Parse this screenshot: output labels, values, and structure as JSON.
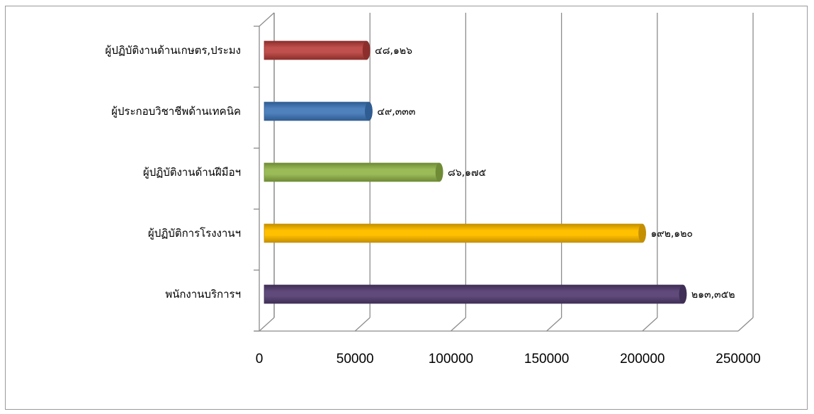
{
  "chart_data": {
    "type": "bar",
    "orientation": "horizontal",
    "title": "",
    "xlabel": "",
    "ylabel": "",
    "categories": [
      "ผู้ปฏิบัติงานด้านเกษตร,ประมง",
      "ผู้ประกอบวิชาชีพด้านเทคนิค",
      "ผู้ปฏิบัติงานด้านฝีมือฯ",
      "ผู้ปฏิบัติการโรงงานฯ",
      "พนักงานบริการฯ"
    ],
    "values": [
      48126,
      49333,
      86175,
      192120,
      213352
    ],
    "data_labels": [
      "๔๘,๑๒๖",
      "๔๙,๓๓๓",
      "๘๖,๑๗๕",
      "๑๙๒,๑๒๐",
      "๒๑๓,๓๕๒"
    ],
    "bar_colors": [
      "#c0504d",
      "#4f81bd",
      "#9bbb59",
      "#ffc000",
      "#604a7b"
    ],
    "bar_edge_colors": [
      "#8c2f2c",
      "#2f5c91",
      "#6f8b35",
      "#c48f00",
      "#3f2f56"
    ],
    "xlim": [
      0,
      250000
    ],
    "xticks": [
      0,
      50000,
      100000,
      150000,
      200000,
      250000
    ],
    "xtick_labels": [
      "0",
      "50000",
      "100000",
      "150000",
      "200000",
      "250000"
    ],
    "grid": true,
    "legend": "none",
    "style": "3d-cylinder"
  }
}
